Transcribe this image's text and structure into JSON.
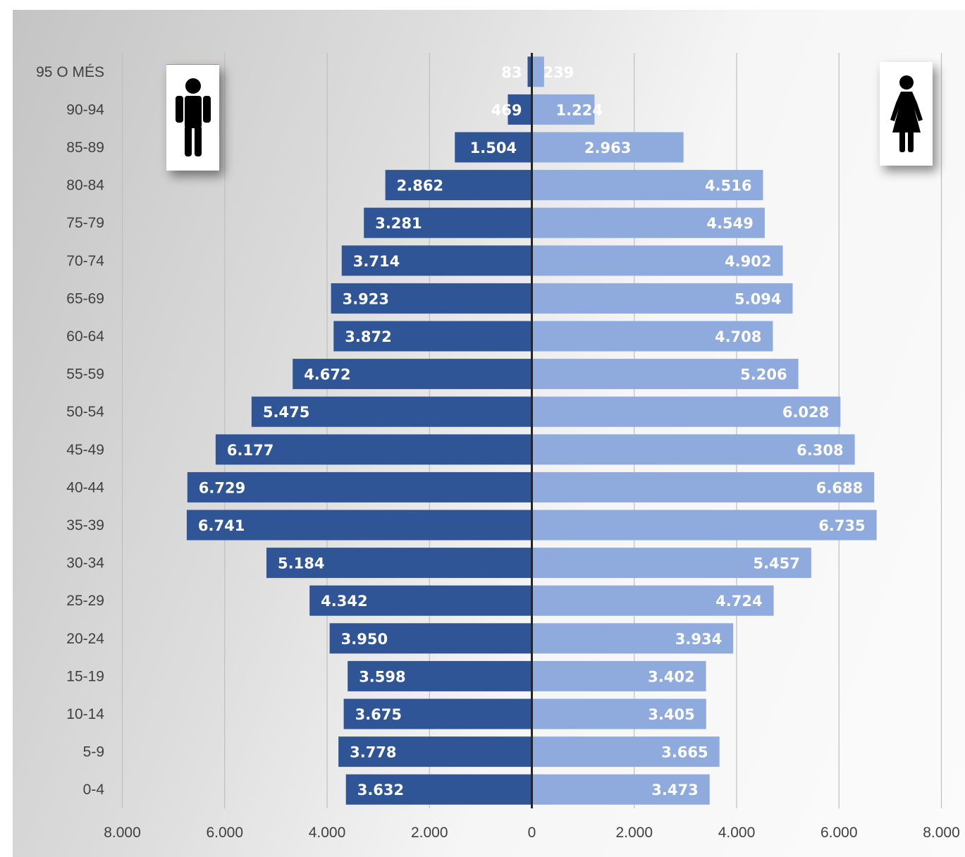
{
  "chart_data": {
    "type": "bar",
    "orientation": "horizontal",
    "categories": [
      "95 O MÉS",
      "90-94",
      "85-89",
      "80-84",
      "75-79",
      "70-74",
      "65-69",
      "60-64",
      "55-59",
      "50-54",
      "45-49",
      "40-44",
      "35-39",
      "30-34",
      "25-29",
      "20-24",
      "15-19",
      "10-14",
      "5-9",
      "0-4"
    ],
    "series": [
      {
        "key": "men",
        "color": "#2f5597",
        "values": [
          83,
          469,
          1504,
          2862,
          3281,
          3714,
          3923,
          3872,
          4672,
          5475,
          6177,
          6729,
          6741,
          5184,
          4342,
          3950,
          3598,
          3675,
          3778,
          3632
        ],
        "labels": [
          "83",
          "469",
          "1.504",
          "2.862",
          "3.281",
          "3.714",
          "3.923",
          "3.872",
          "4.672",
          "5.475",
          "6.177",
          "6.729",
          "6.741",
          "5.184",
          "4.342",
          "3.950",
          "3.598",
          "3.675",
          "3.778",
          "3.632"
        ]
      },
      {
        "key": "women",
        "color": "#8faadc",
        "values": [
          239,
          1224,
          2963,
          4516,
          4549,
          4902,
          5094,
          4708,
          5206,
          6028,
          6308,
          6688,
          6735,
          5457,
          4724,
          3934,
          3402,
          3405,
          3665,
          3473
        ],
        "labels": [
          "239",
          "1.224",
          "2.963",
          "4.516",
          "4.549",
          "4.902",
          "5.094",
          "4.708",
          "5.206",
          "6.028",
          "6.308",
          "6.688",
          "6.735",
          "5.457",
          "4.724",
          "3.934",
          "3.402",
          "3.405",
          "3.665",
          "3.473"
        ]
      }
    ],
    "x_range": [
      -8000,
      8000
    ],
    "x_ticks": [
      -8000,
      -6000,
      -4000,
      -2000,
      0,
      2000,
      4000,
      6000,
      8000
    ],
    "x_tick_labels": [
      "8.000",
      "6.000",
      "4.000",
      "2.000",
      "0",
      "2.000",
      "4.000",
      "6.000",
      "8.000"
    ],
    "grid": "vertical",
    "title": "",
    "xlabel": "",
    "ylabel": ""
  },
  "icons": {
    "left": "male-person-icon",
    "right": "female-person-icon"
  }
}
